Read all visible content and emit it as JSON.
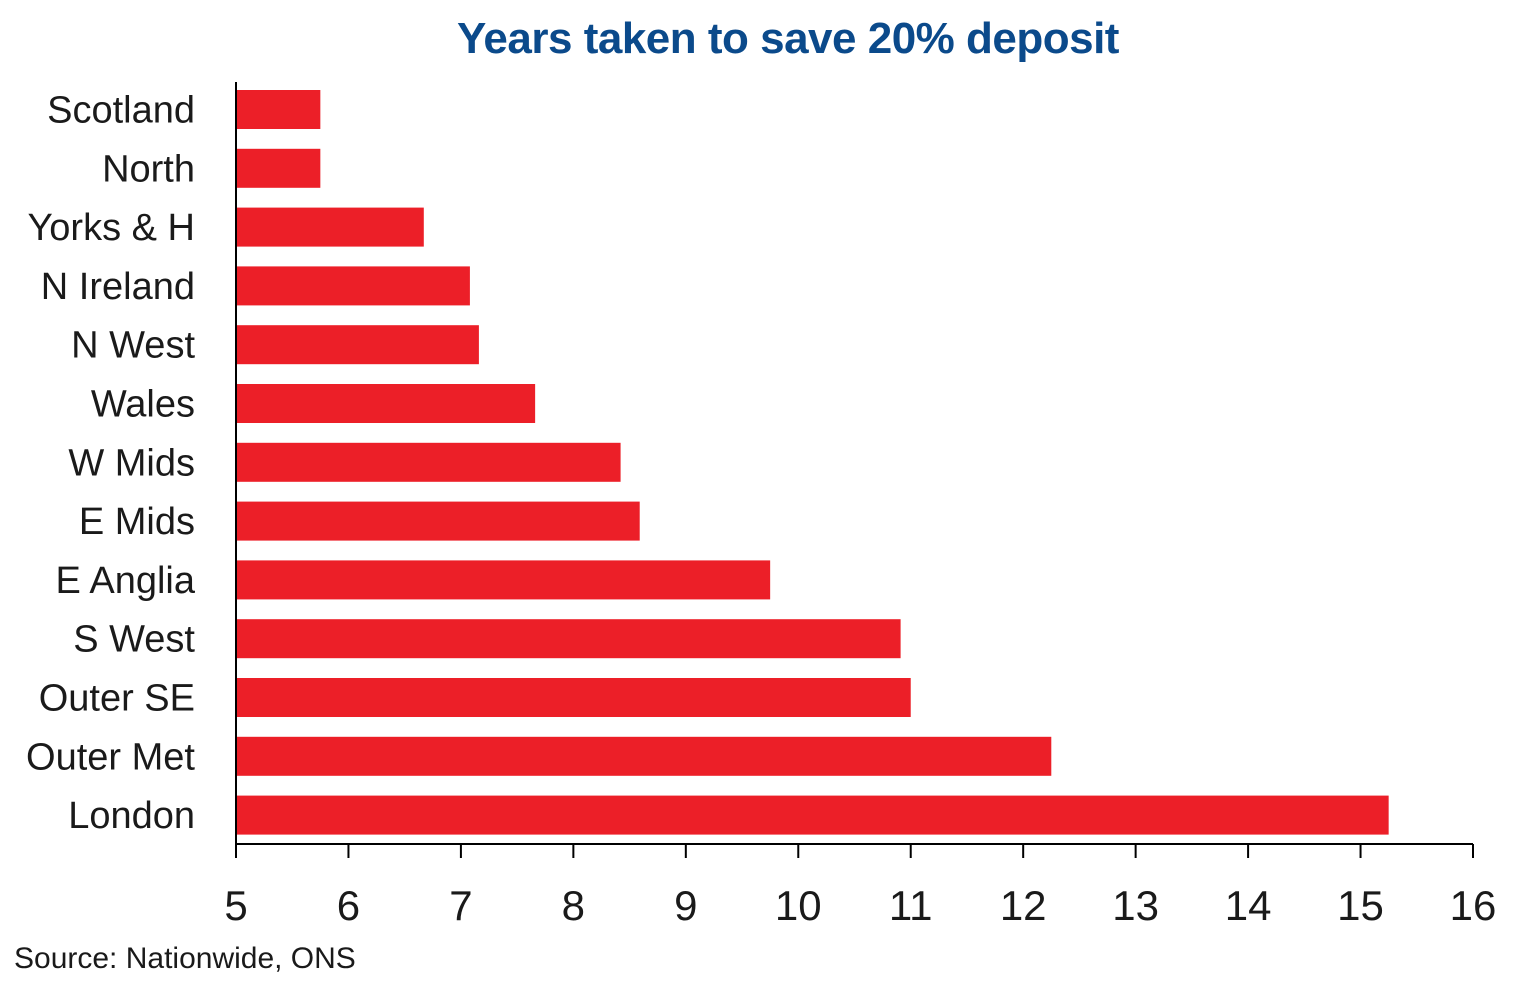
{
  "title": "Years taken to save 20% deposit",
  "source": "Source: Nationwide, ONS",
  "colors": {
    "bar": "#ec1f28",
    "title": "#0b4a8b",
    "axis": "#000000",
    "text": "#1a1a1a"
  },
  "chart_data": {
    "type": "bar",
    "orientation": "horizontal",
    "title": "Years taken to save 20% deposit",
    "xlabel": "",
    "ylabel": "",
    "categories": [
      "Scotland",
      "North",
      "Yorks & H",
      "N Ireland",
      "N West",
      "Wales",
      "W Mids",
      "E Mids",
      "E Anglia",
      "S West",
      "Outer SE",
      "Outer Met",
      "London"
    ],
    "values": [
      5.75,
      5.75,
      6.67,
      7.08,
      7.16,
      7.66,
      8.42,
      8.59,
      9.75,
      10.91,
      11.0,
      12.25,
      15.25
    ],
    "xlim": [
      5,
      16
    ],
    "xticks": [
      "5",
      "6",
      "7",
      "8",
      "9",
      "10",
      "11",
      "12",
      "13",
      "14",
      "15",
      "16"
    ],
    "grid": false,
    "legend": "none"
  }
}
